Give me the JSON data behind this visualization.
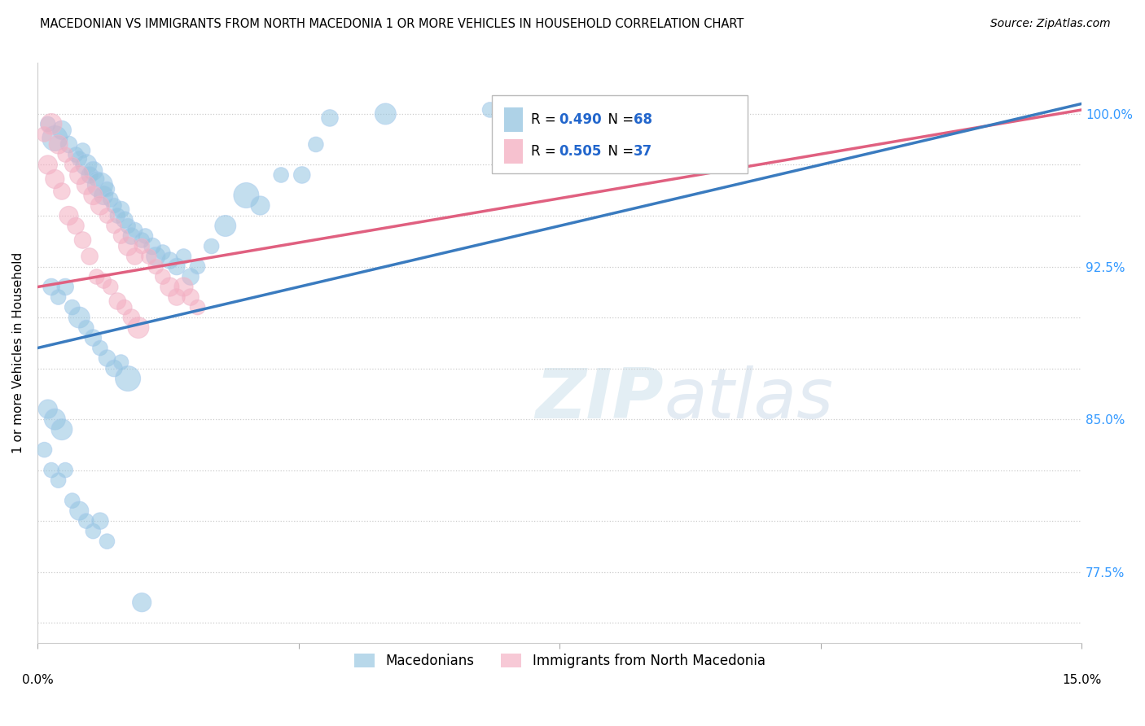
{
  "title": "MACEDONIAN VS IMMIGRANTS FROM NORTH MACEDONIA 1 OR MORE VEHICLES IN HOUSEHOLD CORRELATION CHART",
  "source": "Source: ZipAtlas.com",
  "ylabel": "1 or more Vehicles in Household",
  "yticks": [
    75.0,
    77.5,
    80.0,
    82.5,
    85.0,
    87.5,
    90.0,
    92.5,
    95.0,
    97.5,
    100.0
  ],
  "ytick_labels": [
    "",
    "77.5%",
    "",
    "",
    "85.0%",
    "",
    "",
    "92.5%",
    "",
    "",
    "100.0%"
  ],
  "xlim": [
    0.0,
    15.0
  ],
  "ylim": [
    74.0,
    102.5
  ],
  "legend1_label": "Macedonians",
  "legend2_label": "Immigrants from North Macedonia",
  "R_blue": 0.49,
  "N_blue": 68,
  "R_pink": 0.505,
  "N_pink": 37,
  "blue_color": "#93c4e0",
  "pink_color": "#f4adc0",
  "blue_line_color": "#3a7bbf",
  "pink_line_color": "#e06080",
  "blue_points_x": [
    0.15,
    0.25,
    0.35,
    0.45,
    0.55,
    0.6,
    0.65,
    0.7,
    0.75,
    0.8,
    0.85,
    0.9,
    0.95,
    1.0,
    1.05,
    1.1,
    1.15,
    1.2,
    1.25,
    1.3,
    1.35,
    1.4,
    1.5,
    1.55,
    1.65,
    1.7,
    1.8,
    1.9,
    2.0,
    2.1,
    2.2,
    2.3,
    2.5,
    2.7,
    3.0,
    3.2,
    3.5,
    4.0,
    4.2,
    0.2,
    0.3,
    0.4,
    0.5,
    0.6,
    0.7,
    0.8,
    0.9,
    1.0,
    1.1,
    1.2,
    1.3,
    0.15,
    0.25,
    0.35,
    3.8,
    5.0,
    6.5,
    0.1,
    0.2,
    0.3,
    0.4,
    0.5,
    0.6,
    0.7,
    0.8,
    0.9,
    1.0,
    1.5
  ],
  "blue_points_y": [
    99.5,
    98.8,
    99.2,
    98.5,
    98.0,
    97.8,
    98.2,
    97.5,
    97.0,
    97.2,
    96.8,
    96.5,
    96.0,
    96.3,
    95.8,
    95.5,
    95.0,
    95.3,
    94.8,
    94.5,
    94.0,
    94.3,
    93.8,
    94.0,
    93.5,
    93.0,
    93.2,
    92.8,
    92.5,
    93.0,
    92.0,
    92.5,
    93.5,
    94.5,
    96.0,
    95.5,
    97.0,
    98.5,
    99.8,
    91.5,
    91.0,
    91.5,
    90.5,
    90.0,
    89.5,
    89.0,
    88.5,
    88.0,
    87.5,
    87.8,
    87.0,
    85.5,
    85.0,
    84.5,
    97.0,
    100.0,
    100.2,
    83.5,
    82.5,
    82.0,
    82.5,
    81.0,
    80.5,
    80.0,
    79.5,
    80.0,
    79.0,
    76.0
  ],
  "pink_points_x": [
    0.1,
    0.2,
    0.3,
    0.4,
    0.5,
    0.6,
    0.7,
    0.8,
    0.9,
    1.0,
    1.1,
    1.2,
    1.3,
    1.4,
    1.5,
    1.6,
    1.7,
    1.8,
    1.9,
    2.0,
    2.1,
    2.2,
    2.3,
    0.15,
    0.25,
    0.35,
    0.45,
    0.55,
    0.65,
    0.75,
    0.85,
    0.95,
    1.05,
    1.15,
    1.25,
    1.35,
    1.45
  ],
  "pink_points_y": [
    99.0,
    99.5,
    98.5,
    98.0,
    97.5,
    97.0,
    96.5,
    96.0,
    95.5,
    95.0,
    94.5,
    94.0,
    93.5,
    93.0,
    93.5,
    93.0,
    92.5,
    92.0,
    91.5,
    91.0,
    91.5,
    91.0,
    90.5,
    97.5,
    96.8,
    96.2,
    95.0,
    94.5,
    93.8,
    93.0,
    92.0,
    91.8,
    91.5,
    90.8,
    90.5,
    90.0,
    89.5
  ],
  "blue_line_x0": 0.0,
  "blue_line_y0": 88.5,
  "blue_line_x1": 15.0,
  "blue_line_y1": 100.5,
  "pink_line_x0": 0.0,
  "pink_line_y0": 91.5,
  "pink_line_x1": 15.0,
  "pink_line_y1": 100.2
}
